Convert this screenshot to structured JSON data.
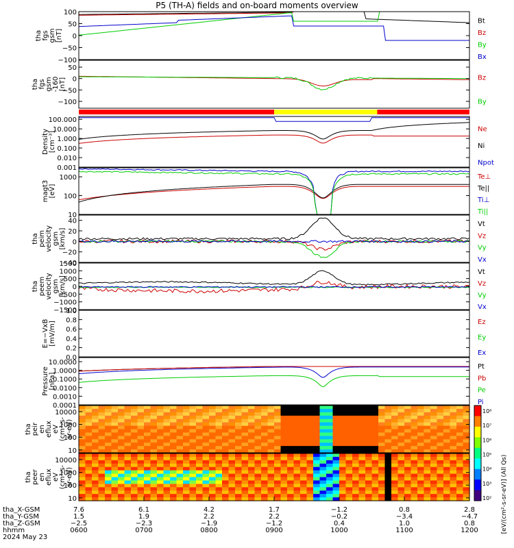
{
  "title": "P5 (TH-A) fields and on-board moments overview",
  "chart_data": {
    "type": "line",
    "panels": [
      {
        "ylabel": [
          "tha",
          "fgs",
          "gsm",
          "[nT]"
        ],
        "ylim": [
          -100,
          100
        ],
        "scale": "linear",
        "ticks": [
          {
            "v": 100,
            "t": "100"
          },
          {
            "v": 50,
            "t": "50"
          },
          {
            "v": 0,
            "t": "0"
          },
          {
            "v": -50,
            "t": "−50"
          },
          {
            "v": -100,
            "t": "−100"
          }
        ],
        "legend": [
          {
            "name": "Bt",
            "color": "#000000"
          },
          {
            "name": "Bz",
            "color": "#cc0000"
          },
          {
            "name": "By",
            "color": "#00cc00"
          },
          {
            "name": "Bx",
            "color": "#0000cc"
          }
        ]
      },
      {
        "ylabel": [
          "tha",
          "fgs",
          "gsm",
          "-160",
          "[nT]"
        ],
        "ylim": [
          -130,
          80
        ],
        "scale": "linear",
        "ticks": [
          {
            "v": 50,
            "t": "50"
          },
          {
            "v": 0,
            "t": "0"
          },
          {
            "v": -50,
            "t": "−50"
          },
          {
            "v": -100,
            "t": "−100"
          }
        ],
        "legend": [
          {
            "name": "Bz",
            "color": "#cc0000"
          },
          {
            "name": "By",
            "color": "#00cc00"
          }
        ]
      },
      {
        "ylabel": [
          "Density",
          "[cm⁻³]"
        ],
        "ylim": [
          0.001,
          200
        ],
        "scale": "log",
        "ticks": [
          {
            "v": 100,
            "t": "100.000"
          },
          {
            "v": 10,
            "t": "10.000"
          },
          {
            "v": 1,
            "t": "1.000"
          },
          {
            "v": 0.1,
            "t": "0.100"
          },
          {
            "v": 0.01,
            "t": "0.010"
          },
          {
            "v": 0.001,
            "t": "0.001"
          }
        ],
        "legend": [
          {
            "name": "Ne",
            "color": "#cc0000"
          },
          {
            "name": "Ni",
            "color": "#000000"
          },
          {
            "name": "Npot",
            "color": "#0000cc"
          }
        ]
      },
      {
        "ylabel": [
          "magt3",
          "[eV]"
        ],
        "ylim": [
          10,
          3000
        ],
        "scale": "log",
        "ticks": [
          {
            "v": 1000,
            "t": "1000"
          },
          {
            "v": 100,
            "t": "100"
          },
          {
            "v": 10,
            "t": "10"
          }
        ],
        "legend": [
          {
            "name": "Te⊥",
            "color": "#cc0000"
          },
          {
            "name": "Te||",
            "color": "#000000"
          },
          {
            "name": "Ti⊥",
            "color": "#0000cc"
          },
          {
            "name": "Ti||",
            "color": "#00cc00"
          }
        ]
      },
      {
        "ylabel": [
          "tha",
          "peim",
          "velocity",
          "gsm",
          "[km/s]"
        ],
        "ylim": [
          -40,
          50
        ],
        "scale": "linear",
        "ticks": [
          {
            "v": 40,
            "t": "40"
          },
          {
            "v": 20,
            "t": "20"
          },
          {
            "v": 0,
            "t": "0"
          },
          {
            "v": -20,
            "t": "−20"
          },
          {
            "v": -40,
            "t": "−40"
          }
        ],
        "legend": [
          {
            "name": "Vt",
            "color": "#000000"
          },
          {
            "name": "Vz",
            "color": "#cc0000"
          },
          {
            "name": "Vy",
            "color": "#00cc00"
          },
          {
            "name": "Vx",
            "color": "#0000cc"
          }
        ]
      },
      {
        "ylabel": [
          "tha",
          "peem",
          "velocity",
          "gsm",
          "[km/s]"
        ],
        "ylim": [
          -1500,
          1500
        ],
        "scale": "linear",
        "ticks": [
          {
            "v": 1500,
            "t": "1500"
          },
          {
            "v": 1000,
            "t": "1000"
          },
          {
            "v": 500,
            "t": "500"
          },
          {
            "v": 0,
            "t": "0"
          },
          {
            "v": -500,
            "t": "−500"
          },
          {
            "v": -1000,
            "t": "−1000"
          },
          {
            "v": -1500,
            "t": "−1500"
          }
        ],
        "legend": [
          {
            "name": "Vt",
            "color": "#000000"
          },
          {
            "name": "Vz",
            "color": "#cc0000"
          },
          {
            "name": "Vy",
            "color": "#00cc00"
          },
          {
            "name": "Vx",
            "color": "#0000cc"
          }
        ]
      },
      {
        "ylabel": [
          "E=−VxB",
          "[mV/m]"
        ],
        "ylim": [
          0,
          1
        ],
        "scale": "linear",
        "ticks": [
          {
            "v": 1,
            "t": "1.0"
          },
          {
            "v": 0.8,
            "t": "0.8"
          },
          {
            "v": 0.6,
            "t": "0.6"
          },
          {
            "v": 0.4,
            "t": "0.4"
          },
          {
            "v": 0.2,
            "t": "0.2"
          },
          {
            "v": 0,
            "t": "0.0"
          }
        ],
        "legend": [
          {
            "name": "Ez",
            "color": "#cc0000"
          },
          {
            "name": "Ey",
            "color": "#00cc00"
          },
          {
            "name": "Ex",
            "color": "#0000cc"
          }
        ]
      },
      {
        "ylabel": [
          "Pressure",
          "[nPa]"
        ],
        "ylim": [
          0.0001,
          30
        ],
        "scale": "log",
        "ticks": [
          {
            "v": 10,
            "t": "10.0000"
          },
          {
            "v": 1,
            "t": "1.0000"
          },
          {
            "v": 0.1,
            "t": "0.1000"
          },
          {
            "v": 0.01,
            "t": "0.0100"
          },
          {
            "v": 0.001,
            "t": "0.0010"
          },
          {
            "v": 0.0001,
            "t": "0.0001"
          }
        ],
        "legend": [
          {
            "name": "Pt",
            "color": "#000000"
          },
          {
            "name": "Pb",
            "color": "#cc0000"
          },
          {
            "name": "Pe",
            "color": "#00cc00"
          },
          {
            "name": "Pi",
            "color": "#0000cc"
          }
        ]
      },
      {
        "ylabel": [
          "tha",
          "peir",
          "en",
          "eflux",
          "eV",
          "(cm²-s-",
          "sr-eV)"
        ],
        "ylim": [
          6,
          30000
        ],
        "scale": "log",
        "spectrogram": true,
        "ticks": [
          {
            "v": 10000,
            "t": "10000"
          },
          {
            "v": 1000,
            "t": "1000"
          },
          {
            "v": 100,
            "t": "100"
          },
          {
            "v": 10,
            "t": "10"
          }
        ],
        "legend": []
      },
      {
        "ylabel": [
          "tha",
          "peer",
          "en",
          "eflux",
          "eV",
          "(cm²-s-",
          "sr-eV)"
        ],
        "ylim": [
          6,
          30000
        ],
        "scale": "log",
        "spectrogram": true,
        "ticks": [
          {
            "v": 10000,
            "t": "10000"
          },
          {
            "v": 1000,
            "t": "1000"
          },
          {
            "v": 100,
            "t": "100"
          },
          {
            "v": 10,
            "t": "10"
          }
        ],
        "legend": []
      }
    ],
    "mode_bar": [
      {
        "from": "06:00",
        "to": "09:00",
        "color": "#ff0000"
      },
      {
        "from": "09:00",
        "to": "10:35",
        "color": "#ffff00"
      },
      {
        "from": "10:35",
        "to": "12:00",
        "color": "#ff0000"
      }
    ],
    "colorbar": {
      "label": "[eV/(cm²-s-sr-eV)] (All Qs)",
      "ticks": [
        "10⁸",
        "10⁷",
        "10⁶",
        "10⁵",
        "10⁴",
        "10³",
        "10²"
      ]
    },
    "x_axis": {
      "rows": [
        {
          "label": "tha_X-GSM",
          "values": [
            "7.6",
            "6.1",
            "4.2",
            "1.7",
            "−1.2",
            "0.8",
            "2.8"
          ]
        },
        {
          "label": "tha_Y-GSM",
          "values": [
            "1.5",
            "1.9",
            "2.2",
            "2.2",
            "−0.2",
            "−3.4",
            "−4.7"
          ]
        },
        {
          "label": "tha_Z-GSM",
          "values": [
            "−2.5",
            "−2.3",
            "−1.9",
            "−1.2",
            "0.4",
            "1.0",
            "0.8"
          ]
        },
        {
          "label": "hhmm",
          "values": [
            "0600",
            "0700",
            "0800",
            "0900",
            "1000",
            "1100",
            "1200"
          ]
        }
      ],
      "date": "2024 May 23"
    }
  }
}
